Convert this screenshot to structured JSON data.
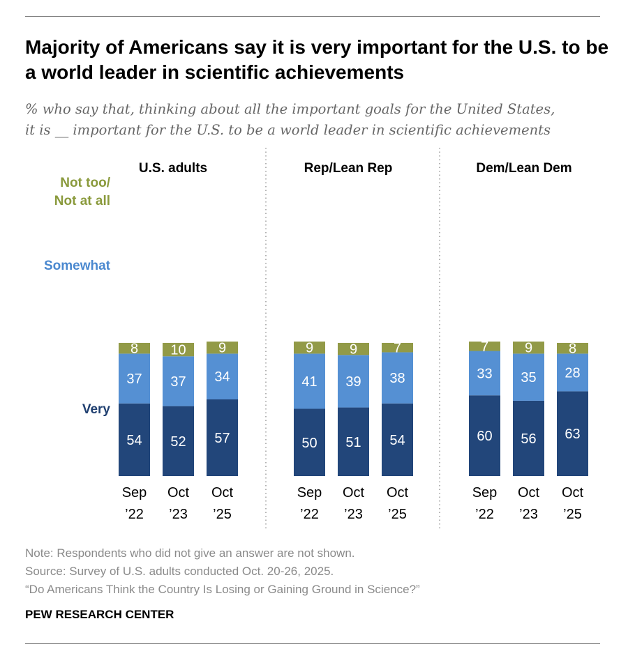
{
  "title": "Majority of Americans say it is very important for the U.S. to be a world leader in scientific achievements",
  "subtitle_line1": "% who say that, thinking about all the important goals for the United States,",
  "subtitle_line2": "it is __ important for the U.S. to be a world leader in scientific achievements",
  "notes": {
    "note": "Note: Respondents who did not give an answer are not shown.",
    "source": "Source: Survey of U.S. adults conducted Oct. 20-26, 2025.",
    "report": "“Do Americans Think the Country Is Losing or Gaining Ground in Science?”"
  },
  "brand": "PEW RESEARCH CENTER",
  "chart_data": {
    "type": "bar",
    "stacked": true,
    "colors": {
      "Very": "#22467a",
      "Somewhat": "#5590d3",
      "Not too/Not at all": "#929a47"
    },
    "series_labels": [
      {
        "name": "Not too/Not at all",
        "lines": [
          "Not too/",
          "Not at all"
        ],
        "color": "#8a9a3c"
      },
      {
        "name": "Somewhat",
        "lines": [
          "Somewhat"
        ],
        "color": "#4a88cf"
      },
      {
        "name": "Very",
        "lines": [
          "Very"
        ],
        "color": "#1f3f70"
      }
    ],
    "panels": [
      {
        "name": "U.S. adults",
        "categories": [
          [
            "Sep",
            "’22"
          ],
          [
            "Oct",
            "’23"
          ],
          [
            "Oct",
            "’25"
          ]
        ],
        "series": [
          {
            "name": "Very",
            "values": [
              54,
              52,
              57
            ]
          },
          {
            "name": "Somewhat",
            "values": [
              37,
              37,
              34
            ]
          },
          {
            "name": "Not too/Not at all",
            "values": [
              8,
              10,
              9
            ]
          }
        ]
      },
      {
        "name": "Rep/Lean Rep",
        "categories": [
          [
            "Sep",
            "’22"
          ],
          [
            "Oct",
            "’23"
          ],
          [
            "Oct",
            "’25"
          ]
        ],
        "series": [
          {
            "name": "Very",
            "values": [
              50,
              51,
              54
            ]
          },
          {
            "name": "Somewhat",
            "values": [
              41,
              39,
              38
            ]
          },
          {
            "name": "Not too/Not at all",
            "values": [
              9,
              9,
              7
            ]
          }
        ]
      },
      {
        "name": "Dem/Lean Dem",
        "categories": [
          [
            "Sep",
            "’22"
          ],
          [
            "Oct",
            "’23"
          ],
          [
            "Oct",
            "’25"
          ]
        ],
        "series": [
          {
            "name": "Very",
            "values": [
              60,
              56,
              63
            ]
          },
          {
            "name": "Somewhat",
            "values": [
              33,
              35,
              28
            ]
          },
          {
            "name": "Not too/Not at all",
            "values": [
              7,
              9,
              8
            ]
          }
        ]
      }
    ]
  }
}
